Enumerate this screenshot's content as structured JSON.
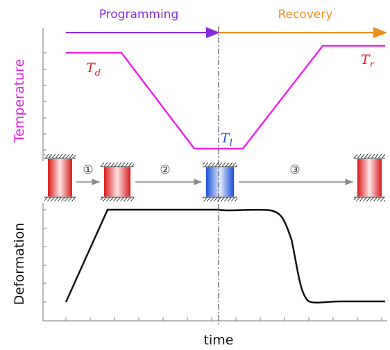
{
  "phases": {
    "programming": "Programming",
    "recovery": "Recovery"
  },
  "axes": {
    "top_y": "Temperature",
    "bottom_y": "Deformation",
    "x": "time"
  },
  "temperatures": {
    "deformation": {
      "symbol": "T",
      "subscript": "d"
    },
    "low": {
      "symbol": "T",
      "subscript": "l"
    },
    "recovery": {
      "symbol": "T",
      "subscript": "r"
    }
  },
  "steps": [
    "①",
    "②",
    "③"
  ]
}
